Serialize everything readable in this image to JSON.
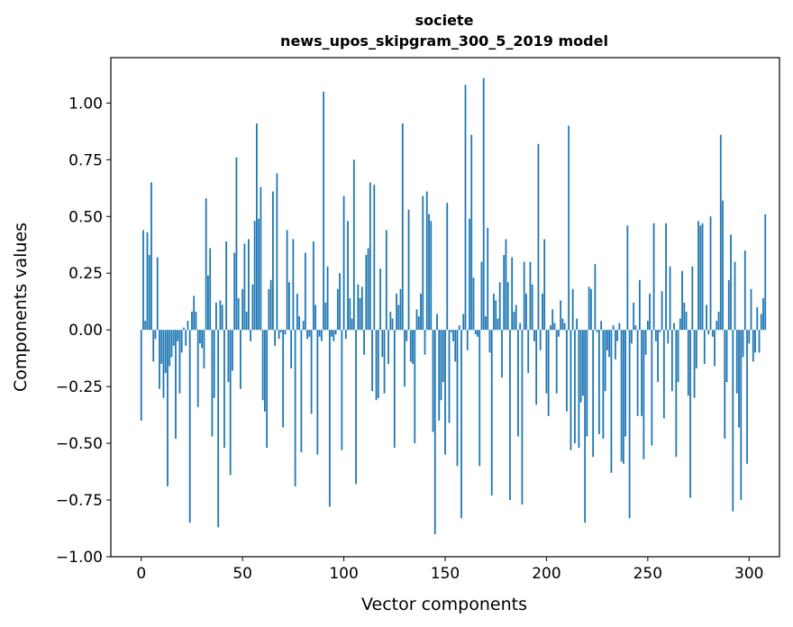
{
  "chart_data": {
    "type": "bar",
    "title": "societe",
    "subtitle": "news_upos_skipgram_300_5_2019 model",
    "xlabel": "Vector components",
    "ylabel": "Components values",
    "xlim": [
      -15,
      315
    ],
    "ylim": [
      -1.0,
      1.2
    ],
    "xticks": [
      0,
      50,
      100,
      150,
      200,
      250,
      300
    ],
    "yticks": [
      -1.0,
      -0.75,
      -0.5,
      -0.25,
      0.0,
      0.25,
      0.5,
      0.75,
      1.0
    ],
    "xtick_labels": [
      "0",
      "50",
      "100",
      "150",
      "200",
      "250",
      "300"
    ],
    "ytick_labels": [
      "−1.00",
      "−0.75",
      "−0.50",
      "−0.25",
      "0.00",
      "0.25",
      "0.50",
      "0.75",
      "1.00"
    ],
    "bar_color": "#1f77b4",
    "categories_start": 0,
    "values": [
      -0.4,
      0.44,
      0.04,
      0.43,
      0.33,
      0.65,
      -0.14,
      -0.04,
      0.32,
      -0.26,
      -0.15,
      -0.3,
      -0.19,
      -0.69,
      -0.16,
      -0.12,
      -0.07,
      -0.48,
      -0.05,
      -0.28,
      -0.1,
      0.01,
      -0.07,
      0.04,
      -0.85,
      0.08,
      0.15,
      0.08,
      -0.34,
      -0.06,
      -0.08,
      -0.17,
      0.58,
      0.24,
      0.36,
      -0.47,
      -0.3,
      0.12,
      -0.87,
      0.13,
      0.11,
      -0.52,
      0.39,
      -0.23,
      -0.64,
      -0.18,
      0.34,
      0.76,
      0.14,
      -0.26,
      0.18,
      0.38,
      0.08,
      0.4,
      -0.05,
      0.2,
      0.48,
      0.91,
      0.49,
      0.63,
      -0.31,
      -0.36,
      -0.52,
      0.18,
      0.22,
      0.61,
      -0.07,
      0.69,
      -0.04,
      -0.01,
      -0.43,
      -0.02,
      0.44,
      0.21,
      -0.17,
      0.4,
      -0.69,
      0.16,
      0.06,
      -0.54,
      0.04,
      0.34,
      -0.04,
      -0.03,
      -0.37,
      0.39,
      0.11,
      -0.55,
      -0.03,
      -0.05,
      1.05,
      0.12,
      0.28,
      -0.78,
      -0.03,
      -0.05,
      -0.02,
      0.18,
      0.25,
      -0.53,
      0.59,
      -0.04,
      0.48,
      0.14,
      0.05,
      0.75,
      -0.68,
      0.2,
      0.14,
      0.19,
      -0.11,
      0.33,
      0.36,
      0.65,
      -0.27,
      0.64,
      -0.31,
      -0.3,
      0.27,
      -0.12,
      -0.28,
      0.44,
      -0.15,
      0.08,
      0.05,
      -0.52,
      0.16,
      0.11,
      0.18,
      0.91,
      -0.25,
      -0.05,
      0.53,
      -0.14,
      -0.15,
      -0.5,
      0.09,
      0.06,
      0.16,
      0.59,
      -0.11,
      0.61,
      0.51,
      0.48,
      -0.45,
      -0.9,
      0.07,
      -0.4,
      -0.31,
      -0.23,
      -0.55,
      0.56,
      -0.41,
      -0.01,
      -0.05,
      -0.14,
      -0.6,
      0.02,
      -0.83,
      0.07,
      1.08,
      -0.09,
      0.49,
      0.86,
      0.23,
      -0.02,
      -0.03,
      -0.6,
      0.3,
      1.11,
      0.06,
      0.45,
      -0.1,
      -0.73,
      0.16,
      0.13,
      0.05,
      0.21,
      -0.21,
      0.33,
      0.4,
      0.21,
      -0.75,
      0.32,
      0.08,
      0.11,
      -0.47,
      0.03,
      -0.77,
      0.3,
      0.16,
      -0.19,
      0.3,
      0.2,
      -0.05,
      -0.33,
      0.82,
      -0.09,
      0.16,
      0.4,
      -0.28,
      -0.38,
      0.02,
      0.09,
      0.03,
      -0.28,
      -0.03,
      0.13,
      0.05,
      0.03,
      -0.36,
      0.9,
      -0.53,
      0.18,
      -0.5,
      0.05,
      -0.52,
      -0.32,
      -0.29,
      -0.85,
      -0.47,
      0.19,
      0.18,
      -0.56,
      0.29,
      -0.01,
      -0.46,
      0.04,
      -0.48,
      -0.27,
      -0.09,
      -0.12,
      -0.63,
      0.02,
      -0.13,
      -0.05,
      0.03,
      -0.58,
      -0.59,
      -0.47,
      0.46,
      -0.83,
      -0.06,
      0.12,
      0.02,
      -0.38,
      0.22,
      -0.38,
      -0.57,
      -0.11,
      0.04,
      0.16,
      -0.51,
      0.47,
      -0.05,
      -0.23,
      -0.01,
      0.17,
      -0.39,
      0.47,
      -0.06,
      0.28,
      -0.27,
      0.03,
      -0.56,
      -0.23,
      0.05,
      0.26,
      0.12,
      0.08,
      -0.29,
      -0.74,
      0.28,
      -0.3,
      -0.17,
      0.48,
      0.46,
      0.47,
      -0.15,
      0.11,
      -0.02,
      0.5,
      -0.03,
      -0.16,
      0.04,
      0.08,
      0.86,
      0.57,
      -0.48,
      -0.23,
      0.22,
      0.42,
      -0.8,
      0.3,
      -0.28,
      -0.43,
      -0.75,
      -0.12,
      0.35,
      -0.59,
      -0.06,
      0.18,
      -0.14,
      -0.1,
      0.1,
      -0.1,
      0.07,
      0.14,
      0.51
    ]
  }
}
